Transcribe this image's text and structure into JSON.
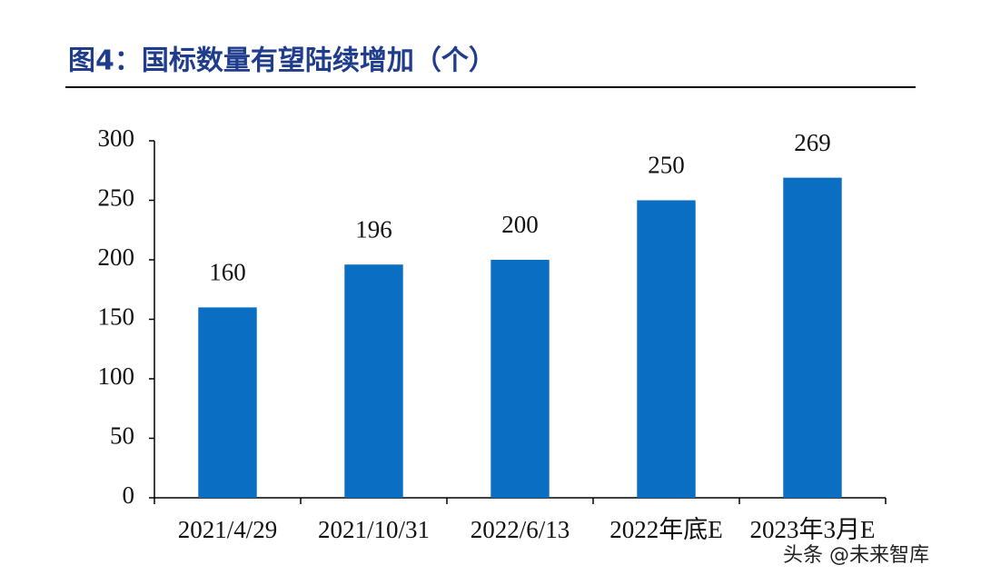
{
  "chart_data": {
    "type": "bar",
    "title": "图4：国标数量有望陆续增加（个）",
    "categories": [
      "2021/4/29",
      "2021/10/31",
      "2022/6/13",
      "2022年底E",
      "2023年3月E"
    ],
    "values": [
      160,
      196,
      200,
      250,
      269
    ],
    "color": "#0a6fc2",
    "ylim": [
      0,
      300
    ],
    "yticks": [
      0,
      50,
      100,
      150,
      200,
      250,
      300
    ],
    "watermark": "头条 @未来智库"
  }
}
